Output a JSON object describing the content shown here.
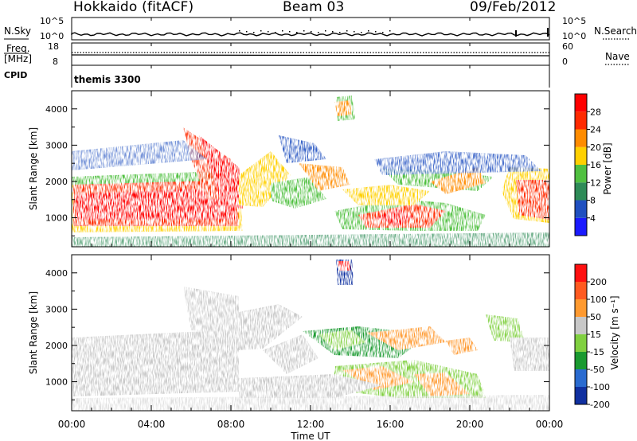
{
  "header": {
    "station": "Hokkaido (fitACF)",
    "beam": "Beam 03",
    "date": "09/Feb/2012"
  },
  "panels": {
    "nsky_label": "N.Sky",
    "nsky_ticks": [
      "10^5",
      "10^0"
    ],
    "nsearch_label": "N.Search",
    "nsearch_ticks": [
      "10^5",
      "10^0"
    ],
    "freq_label": "Freq.",
    "freq_unit": "[MHz]",
    "freq_ticks": [
      "18",
      "8"
    ],
    "nave_label": "Nave",
    "nave_ticks": [
      "60",
      "0"
    ],
    "cpid_label": "CPID",
    "cpid_value": "themis 3300"
  },
  "chart_data": [
    {
      "type": "heatmap",
      "name": "power",
      "ylabel": "Slant Range [km]",
      "yticks": [
        "1000",
        "2000",
        "3000",
        "4000"
      ],
      "ylim": [
        200,
        4500
      ],
      "colorbar_label": "Power [dB]",
      "colorbar_ticks": [
        "4",
        "8",
        "12",
        "16",
        "20",
        "24",
        "28"
      ],
      "colorbar_colors": [
        "#1a1aff",
        "#2050c0",
        "#2e8b57",
        "#50c040",
        "#ffd000",
        "#ff8c00",
        "#ff2a00",
        "#ff0000"
      ]
    },
    {
      "type": "heatmap",
      "name": "velocity",
      "ylabel": "Slant Range [km]",
      "yticks": [
        "1000",
        "2000",
        "3000",
        "4000"
      ],
      "ylim": [
        200,
        4500
      ],
      "colorbar_label": "Velocity [m s⁻¹]",
      "colorbar_ticks": [
        "200",
        "100",
        "50",
        "15",
        "-15",
        "-50",
        "-100",
        "-200"
      ],
      "colorbar_colors": [
        "#1030a0",
        "#2a6bd0",
        "#1a9a30",
        "#80d040",
        "#c8c8c8",
        "#ff9a30",
        "#ff5a20",
        "#ff1010"
      ]
    }
  ],
  "xaxis": {
    "label": "Time UT",
    "ticks": [
      "00:00",
      "04:00",
      "08:00",
      "12:00",
      "16:00",
      "20:00",
      "00:00"
    ]
  }
}
